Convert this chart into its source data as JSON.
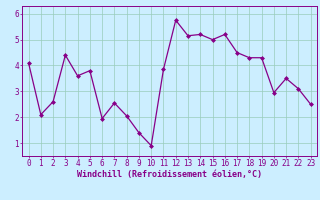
{
  "x": [
    0,
    1,
    2,
    3,
    4,
    5,
    6,
    7,
    8,
    9,
    10,
    11,
    12,
    13,
    14,
    15,
    16,
    17,
    18,
    19,
    20,
    21,
    22,
    23
  ],
  "y": [
    4.1,
    2.1,
    2.6,
    4.4,
    3.6,
    3.8,
    1.95,
    2.55,
    2.05,
    1.4,
    0.9,
    3.85,
    5.75,
    5.15,
    5.2,
    5.0,
    5.2,
    4.5,
    4.3,
    4.3,
    2.95,
    3.5,
    3.1,
    2.5
  ],
  "line_color": "#880088",
  "marker": "D",
  "marker_size": 2.0,
  "bg_color": "#cceeff",
  "grid_color": "#99ccbb",
  "xlabel": "Windchill (Refroidissement éolien,°C)",
  "xlabel_color": "#880088",
  "xlabel_fontsize": 6.0,
  "ylim": [
    0.5,
    6.3
  ],
  "xlim": [
    -0.5,
    23.5
  ],
  "yticks": [
    1,
    2,
    3,
    4,
    5,
    6
  ],
  "xticks": [
    0,
    1,
    2,
    3,
    4,
    5,
    6,
    7,
    8,
    9,
    10,
    11,
    12,
    13,
    14,
    15,
    16,
    17,
    18,
    19,
    20,
    21,
    22,
    23
  ],
  "tick_fontsize": 5.5,
  "tick_color": "#880088",
  "spine_color": "#880088",
  "linewidth": 0.9
}
